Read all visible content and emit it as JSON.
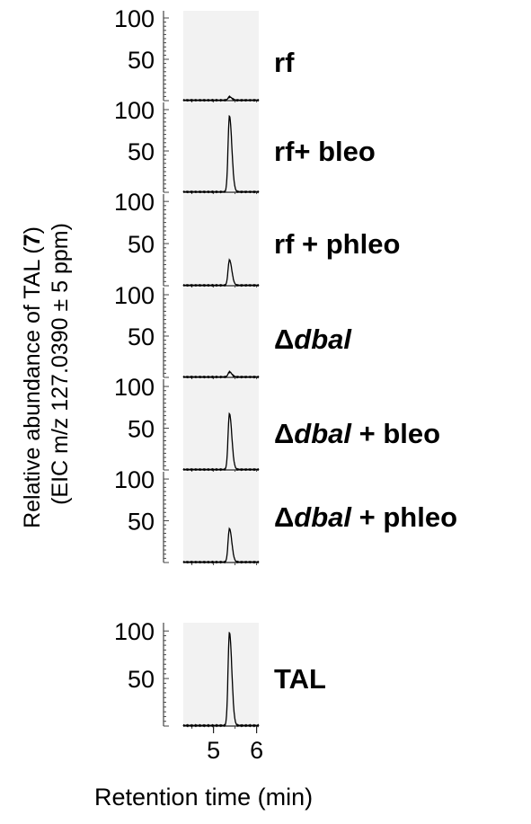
{
  "ylabel": {
    "line1_pre": "Relative abundance of TAL (",
    "line1_num": "7",
    "line1_post": ")",
    "line2": "(EIC m/z 127.0390 ± 5 ppm)"
  },
  "xlabel": "Retention time (min)",
  "panels": [
    {
      "delta": "",
      "italic": "",
      "suffix": "",
      "main": "rf"
    },
    {
      "delta": "",
      "italic": "",
      "suffix": "",
      "main": "rf+ bleo"
    },
    {
      "delta": "",
      "italic": "",
      "suffix": "",
      "main": "rf + phleo"
    },
    {
      "delta": "Δ",
      "italic": "dbal",
      "suffix": "",
      "main": ""
    },
    {
      "delta": "Δ",
      "italic": "dbal",
      "suffix": " + bleo",
      "main": ""
    },
    {
      "delta": "Δ",
      "italic": "dbal",
      "suffix": " + phleo",
      "main": ""
    },
    {
      "delta": "",
      "italic": "",
      "suffix": "",
      "main": "TAL"
    }
  ],
  "chart_data": {
    "type": "line",
    "xlabel": "Retention time (min)",
    "ylabel": "Relative abundance of TAL (7) (EIC m/z 127.0390 ± 5 ppm)",
    "xlim": [
      4.3,
      6.05
    ],
    "ylim": [
      0,
      100
    ],
    "x_ticks": [
      "5",
      "6"
    ],
    "y_ticks": [
      "100",
      "50"
    ],
    "peak_rt": 5.37,
    "series": [
      {
        "name": "rf",
        "peak_height": 4
      },
      {
        "name": "rf+ bleo",
        "peak_height": 92
      },
      {
        "name": "rf + phleo",
        "peak_height": 30
      },
      {
        "name": "Δdbal",
        "peak_height": 6
      },
      {
        "name": "Δdbal + bleo",
        "peak_height": 67
      },
      {
        "name": "Δdbal + phleo",
        "peak_height": 40
      },
      {
        "name": "TAL",
        "peak_height": 98
      }
    ]
  }
}
